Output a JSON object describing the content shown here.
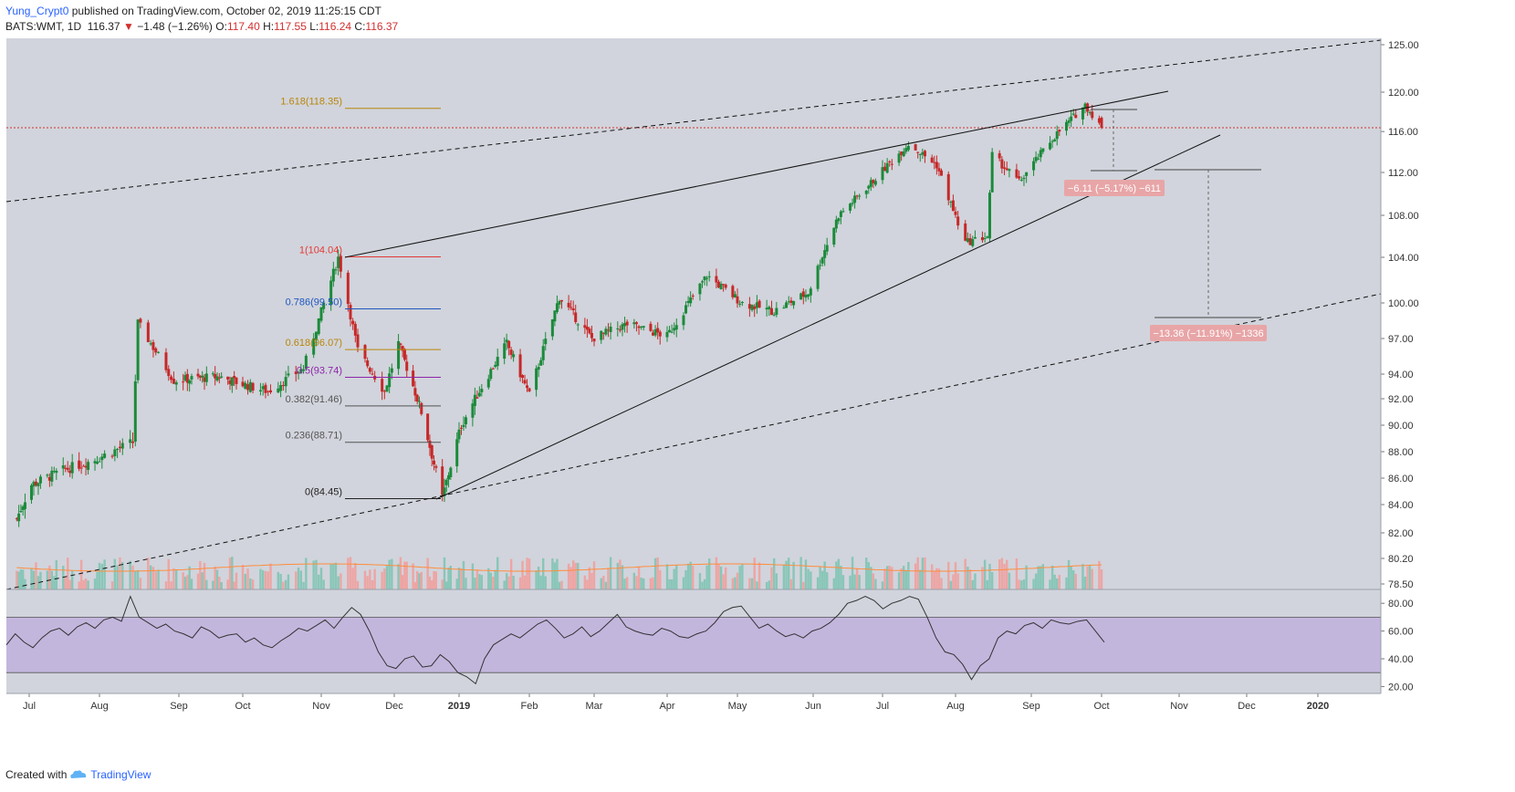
{
  "header": {
    "author": "Yung_Crypt0",
    "published": " published on TradingView.com, October 02, 2019 11:25:15 CDT",
    "symbol": "BATS:WMT, 1D",
    "last": "116.37",
    "arrow": "▼",
    "change": "−1.48 (−1.26%)",
    "o_label": "O:",
    "o_val": "117.40",
    "h_label": "H:",
    "h_val": "117.55",
    "l_label": "L:",
    "l_val": "116.24",
    "c_label": "C:",
    "c_val": "116.37"
  },
  "footer": {
    "created": "Created with",
    "brand": "TradingView"
  },
  "colors": {
    "background": "#d1d4dc",
    "rsi_band": "#c3b6dd",
    "up": "#26a69a",
    "down": "#ef5350",
    "candle_up": "#1b8a3a",
    "candle_down": "#c62828",
    "ma": "#ff8c3a",
    "price_line": "#d32f2f"
  },
  "chart_data": {
    "type": "candlestick",
    "symbol": "BATS:WMT",
    "interval": "1D",
    "ylim": [
      78.0,
      125.5
    ],
    "price_axis_ticks": [
      "125.00",
      "120.00",
      "116.00",
      "112.00",
      "108.00",
      "104.00",
      "100.00",
      "97.00",
      "94.00",
      "92.00",
      "90.00",
      "88.00",
      "86.00",
      "84.00",
      "82.00",
      "80.20",
      "78.50"
    ],
    "current_price": "116.37",
    "x_labels": [
      "Jul",
      "Aug",
      "Sep",
      "Oct",
      "Nov",
      "Dec",
      "2019",
      "Feb",
      "Mar",
      "Apr",
      "May",
      "Jun",
      "Jul",
      "Aug",
      "Sep",
      "Oct",
      "Nov",
      "Dec",
      "2020"
    ],
    "price_path": [
      {
        "date": "2018-06-25",
        "close": 83.0
      },
      {
        "date": "2018-07-02",
        "close": 85.5
      },
      {
        "date": "2018-07-16",
        "close": 86.6
      },
      {
        "date": "2018-07-30",
        "close": 87.4
      },
      {
        "date": "2018-08-14",
        "close": 88.7
      },
      {
        "date": "2018-08-16",
        "close": 98.3
      },
      {
        "date": "2018-08-30",
        "close": 93.5
      },
      {
        "date": "2018-09-20",
        "close": 93.8
      },
      {
        "date": "2018-10-11",
        "close": 92.6
      },
      {
        "date": "2018-10-25",
        "close": 94.5
      },
      {
        "date": "2018-11-08",
        "close": 104.0
      },
      {
        "date": "2018-11-16",
        "close": 96.0
      },
      {
        "date": "2018-11-27",
        "close": 92.6
      },
      {
        "date": "2018-12-03",
        "close": 96.6
      },
      {
        "date": "2018-12-14",
        "close": 91.0
      },
      {
        "date": "2018-12-24",
        "close": 84.5
      },
      {
        "date": "2019-01-02",
        "close": 90.0
      },
      {
        "date": "2019-01-22",
        "close": 96.6
      },
      {
        "date": "2019-02-01",
        "close": 92.3
      },
      {
        "date": "2019-02-14",
        "close": 100.5
      },
      {
        "date": "2019-02-28",
        "close": 97.0
      },
      {
        "date": "2019-03-15",
        "close": 98.2
      },
      {
        "date": "2019-04-01",
        "close": 97.2
      },
      {
        "date": "2019-04-18",
        "close": 102.4
      },
      {
        "date": "2019-05-03",
        "close": 100.0
      },
      {
        "date": "2019-05-16",
        "close": 99.3
      },
      {
        "date": "2019-05-30",
        "close": 100.9
      },
      {
        "date": "2019-06-12",
        "close": 108.0
      },
      {
        "date": "2019-06-26",
        "close": 111.0
      },
      {
        "date": "2019-07-12",
        "close": 114.8
      },
      {
        "date": "2019-07-24",
        "close": 112.7
      },
      {
        "date": "2019-08-05",
        "close": 105.4
      },
      {
        "date": "2019-08-14",
        "close": 106.0
      },
      {
        "date": "2019-08-16",
        "close": 113.7
      },
      {
        "date": "2019-08-27",
        "close": 111.1
      },
      {
        "date": "2019-09-10",
        "close": 115.3
      },
      {
        "date": "2019-09-24",
        "close": 118.7
      },
      {
        "date": "2019-10-01",
        "close": 116.37
      }
    ],
    "fibonacci": [
      {
        "label": "1.618(118.35)",
        "price": 118.35,
        "color": "#b8860b"
      },
      {
        "label": "1(104.04)",
        "price": 104.04,
        "color": "#e53935"
      },
      {
        "label": "0.786(99.50)",
        "price": 99.5,
        "color": "#1e56c0"
      },
      {
        "label": "0.618(96.07)",
        "price": 96.07,
        "color": "#b8860b"
      },
      {
        "label": "0.5(93.74)",
        "price": 93.74,
        "color": "#8e24aa"
      },
      {
        "label": "0.382(91.46)",
        "price": 91.46,
        "color": "#555555"
      },
      {
        "label": "0.236(88.71)",
        "price": 88.71,
        "color": "#555555"
      },
      {
        "label": "0(84.45)",
        "price": 84.45,
        "color": "#222222"
      }
    ],
    "measure_labels": [
      "−6.11 (−5.17%) −611",
      "−13.36 (−11.91%) −1336"
    ],
    "rsi": {
      "axis_ticks": [
        "80.00",
        "60.00",
        "40.00",
        "20.00"
      ],
      "ylim": [
        15,
        90
      ],
      "upper": 70,
      "lower": 30,
      "path": [
        50,
        58,
        52,
        48,
        55,
        60,
        62,
        57,
        63,
        66,
        62,
        68,
        70,
        67,
        85,
        70,
        66,
        62,
        65,
        60,
        58,
        55,
        63,
        60,
        55,
        57,
        58,
        52,
        55,
        50,
        48,
        53,
        57,
        62,
        60,
        64,
        68,
        62,
        70,
        77,
        72,
        60,
        45,
        35,
        33,
        40,
        42,
        34,
        35,
        43,
        38,
        30,
        27,
        22,
        40,
        50,
        54,
        58,
        55,
        60,
        65,
        68,
        62,
        55,
        58,
        63,
        56,
        60,
        66,
        72,
        63,
        60,
        58,
        57,
        62,
        60,
        56,
        55,
        58,
        60,
        66,
        74,
        77,
        78,
        70,
        62,
        65,
        60,
        56,
        58,
        55,
        60,
        62,
        66,
        72,
        80,
        82,
        85,
        82,
        76,
        80,
        82,
        85,
        83,
        70,
        55,
        45,
        43,
        36,
        25,
        35,
        40,
        55,
        60,
        58,
        64,
        66,
        62,
        68,
        66,
        65,
        67,
        68,
        60,
        52
      ]
    },
    "volume": {
      "ma_color": "#ff8c3a"
    }
  }
}
